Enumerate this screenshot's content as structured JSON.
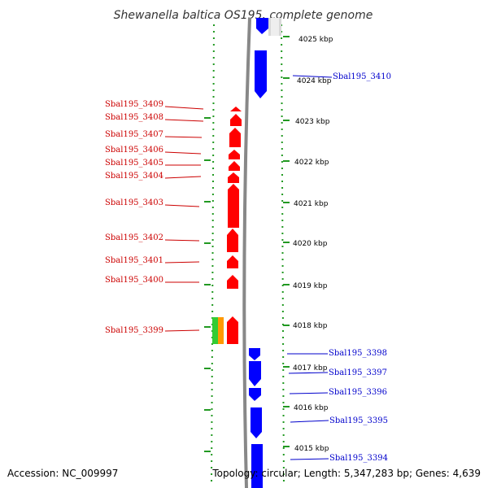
{
  "title": "Shewanella baltica OS195, complete genome",
  "accession": "Accession: NC_009997",
  "summary": "Topology: circular; Length: 5,347,283 bp; Genes: 4,639",
  "colors": {
    "reverse_strand": "#ff0000",
    "forward_strand": "#0000ff",
    "rna_green": "#33cc33",
    "rna_orange": "#ff9900",
    "dotted_ruler": "#229922",
    "backbone": "#888888"
  },
  "scale": [
    {
      "label": "4025 kbp",
      "kbp": 4025
    },
    {
      "label": "4024 kbp",
      "kbp": 4024
    },
    {
      "label": "4023 kbp",
      "kbp": 4023
    },
    {
      "label": "4022 kbp",
      "kbp": 4022
    },
    {
      "label": "4021 kbp",
      "kbp": 4021
    },
    {
      "label": "4020 kbp",
      "kbp": 4020
    },
    {
      "label": "4019 kbp",
      "kbp": 4019
    },
    {
      "label": "4018 kbp",
      "kbp": 4018
    },
    {
      "label": "4017 kbp",
      "kbp": 4017
    },
    {
      "label": "4016 kbp",
      "kbp": 4016
    },
    {
      "label": "4015 kbp",
      "kbp": 4015
    }
  ],
  "genes_left": [
    {
      "label": "Sbal195_3409"
    },
    {
      "label": "Sbal195_3408"
    },
    {
      "label": "Sbal195_3407"
    },
    {
      "label": "Sbal195_3406"
    },
    {
      "label": "Sbal195_3405"
    },
    {
      "label": "Sbal195_3404"
    },
    {
      "label": "Sbal195_3403"
    },
    {
      "label": "Sbal195_3402"
    },
    {
      "label": "Sbal195_3401"
    },
    {
      "label": "Sbal195_3400"
    },
    {
      "label": "Sbal195_3399"
    }
  ],
  "genes_right": [
    {
      "label": "Sbal195_3410"
    },
    {
      "label": "Sbal195_3398"
    },
    {
      "label": "Sbal195_3397"
    },
    {
      "label": "Sbal195_3396"
    },
    {
      "label": "Sbal195_3395"
    },
    {
      "label": "Sbal195_3394"
    }
  ]
}
